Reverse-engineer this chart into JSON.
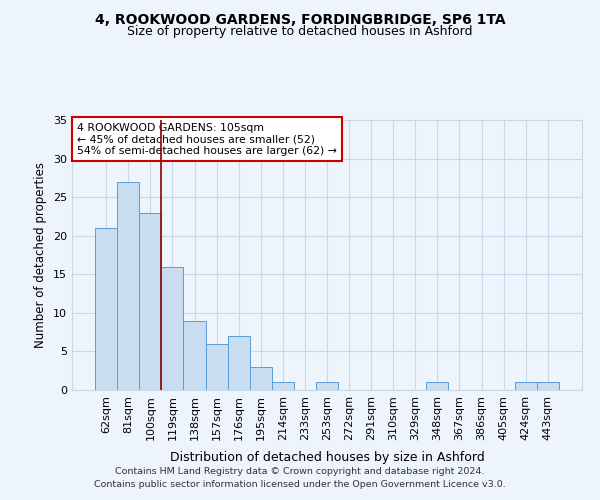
{
  "title1": "4, ROOKWOOD GARDENS, FORDINGBRIDGE, SP6 1TA",
  "title2": "Size of property relative to detached houses in Ashford",
  "xlabel": "Distribution of detached houses by size in Ashford",
  "ylabel": "Number of detached properties",
  "categories": [
    "62sqm",
    "81sqm",
    "100sqm",
    "119sqm",
    "138sqm",
    "157sqm",
    "176sqm",
    "195sqm",
    "214sqm",
    "233sqm",
    "253sqm",
    "272sqm",
    "291sqm",
    "310sqm",
    "329sqm",
    "348sqm",
    "367sqm",
    "386sqm",
    "405sqm",
    "424sqm",
    "443sqm"
  ],
  "values": [
    21,
    27,
    23,
    16,
    9,
    6,
    7,
    3,
    1,
    0,
    1,
    0,
    0,
    0,
    0,
    1,
    0,
    0,
    0,
    1,
    1
  ],
  "bar_color": "#c9ddf0",
  "bar_edge_color": "#5b9bd5",
  "red_line_x": 2.5,
  "annotation_line1": "4 ROOKWOOD GARDENS: 105sqm",
  "annotation_line2": "← 45% of detached houses are smaller (52)",
  "annotation_line3": "54% of semi-detached houses are larger (62) →",
  "annotation_box_color": "#ffffff",
  "annotation_box_edge": "#cc0000",
  "ylim": [
    0,
    35
  ],
  "yticks": [
    0,
    5,
    10,
    15,
    20,
    25,
    30,
    35
  ],
  "footer1": "Contains HM Land Registry data © Crown copyright and database right 2024.",
  "footer2": "Contains public sector information licensed under the Open Government Licence v3.0.",
  "bg_color": "#eef4fb",
  "grid_color": "#c8d8e8",
  "title1_fontsize": 10,
  "title2_fontsize": 9
}
